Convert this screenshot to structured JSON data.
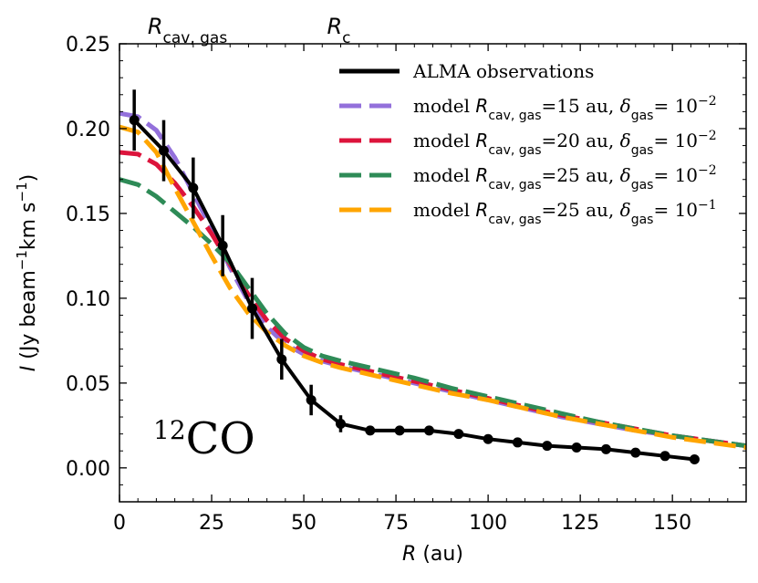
{
  "chart_data": {
    "type": "line",
    "xlabel": "R (au)",
    "ylabel": "I (Jy beam⁻¹km s⁻¹)",
    "xlim": [
      0,
      170
    ],
    "ylim": [
      -0.02,
      0.25
    ],
    "xticks": [
      0,
      25,
      50,
      75,
      100,
      125,
      150
    ],
    "yticks": [
      0.0,
      0.05,
      0.1,
      0.15,
      0.2,
      0.25
    ],
    "ytick_labels": [
      "0.00",
      "0.05",
      "0.10",
      "0.15",
      "0.20",
      "0.25"
    ],
    "annotation": "12CO",
    "top_markers": [
      {
        "label": "R_cav,gas",
        "x": 20
      },
      {
        "label": "R_c",
        "x": 60
      }
    ],
    "legend_position": "top-right",
    "observations": {
      "name": "ALMA observations",
      "color": "#000000",
      "x": [
        4,
        12,
        20,
        28,
        36,
        44,
        52,
        60,
        68,
        76,
        84,
        92,
        100,
        108,
        116,
        124,
        132,
        140,
        148,
        156
      ],
      "y": [
        0.205,
        0.187,
        0.165,
        0.131,
        0.094,
        0.064,
        0.04,
        0.026,
        0.022,
        0.022,
        0.022,
        0.02,
        0.017,
        0.015,
        0.013,
        0.012,
        0.011,
        0.009,
        0.007,
        0.005
      ],
      "yerr": [
        0.018,
        0.018,
        0.018,
        0.018,
        0.018,
        0.012,
        0.009,
        0.005,
        0.002,
        0.002,
        0.002,
        0.002,
        0.002,
        0.002,
        0.002,
        0.002,
        0.002,
        0.002,
        0.002,
        0.002
      ]
    },
    "series": [
      {
        "name": "model R_cav,gas=15 au, δ_gas= 10⁻²",
        "color": "#9370DB",
        "x": [
          0,
          5,
          10,
          15,
          20,
          25,
          30,
          35,
          40,
          45,
          50,
          55,
          60,
          70,
          80,
          90,
          100,
          110,
          120,
          130,
          140,
          150,
          160,
          170
        ],
        "y": [
          0.209,
          0.207,
          0.199,
          0.183,
          0.162,
          0.141,
          0.118,
          0.098,
          0.083,
          0.073,
          0.067,
          0.063,
          0.06,
          0.055,
          0.05,
          0.045,
          0.04,
          0.035,
          0.03,
          0.026,
          0.022,
          0.019,
          0.016,
          0.013
        ]
      },
      {
        "name": "model R_cav,gas=20 au, δ_gas= 10⁻²",
        "color": "#DC143C",
        "x": [
          0,
          5,
          10,
          15,
          20,
          25,
          30,
          35,
          40,
          45,
          50,
          55,
          60,
          70,
          80,
          90,
          100,
          110,
          120,
          130,
          140,
          150,
          160,
          170
        ],
        "y": [
          0.186,
          0.185,
          0.179,
          0.168,
          0.154,
          0.138,
          0.12,
          0.102,
          0.087,
          0.076,
          0.069,
          0.064,
          0.061,
          0.056,
          0.051,
          0.046,
          0.041,
          0.036,
          0.031,
          0.027,
          0.023,
          0.019,
          0.016,
          0.013
        ]
      },
      {
        "name": "model R_cav,gas=25 au, δ_gas= 10⁻²",
        "color": "#2E8B57",
        "x": [
          0,
          5,
          10,
          15,
          20,
          25,
          30,
          35,
          40,
          45,
          50,
          55,
          60,
          70,
          80,
          90,
          100,
          110,
          120,
          130,
          140,
          150,
          160,
          170
        ],
        "y": [
          0.17,
          0.167,
          0.16,
          0.151,
          0.142,
          0.132,
          0.121,
          0.106,
          0.091,
          0.079,
          0.071,
          0.066,
          0.063,
          0.058,
          0.053,
          0.047,
          0.042,
          0.037,
          0.032,
          0.027,
          0.023,
          0.019,
          0.016,
          0.013
        ]
      },
      {
        "name": "model R_cav,gas=25 au, δ_gas= 10⁻¹",
        "color": "#FFA500",
        "x": [
          0,
          5,
          10,
          15,
          20,
          25,
          30,
          35,
          40,
          45,
          50,
          55,
          60,
          70,
          80,
          90,
          100,
          110,
          120,
          130,
          140,
          150,
          160,
          170
        ],
        "y": [
          0.201,
          0.198,
          0.186,
          0.165,
          0.145,
          0.125,
          0.106,
          0.091,
          0.08,
          0.072,
          0.066,
          0.062,
          0.059,
          0.054,
          0.049,
          0.044,
          0.04,
          0.035,
          0.03,
          0.026,
          0.022,
          0.018,
          0.015,
          0.012
        ]
      }
    ]
  }
}
